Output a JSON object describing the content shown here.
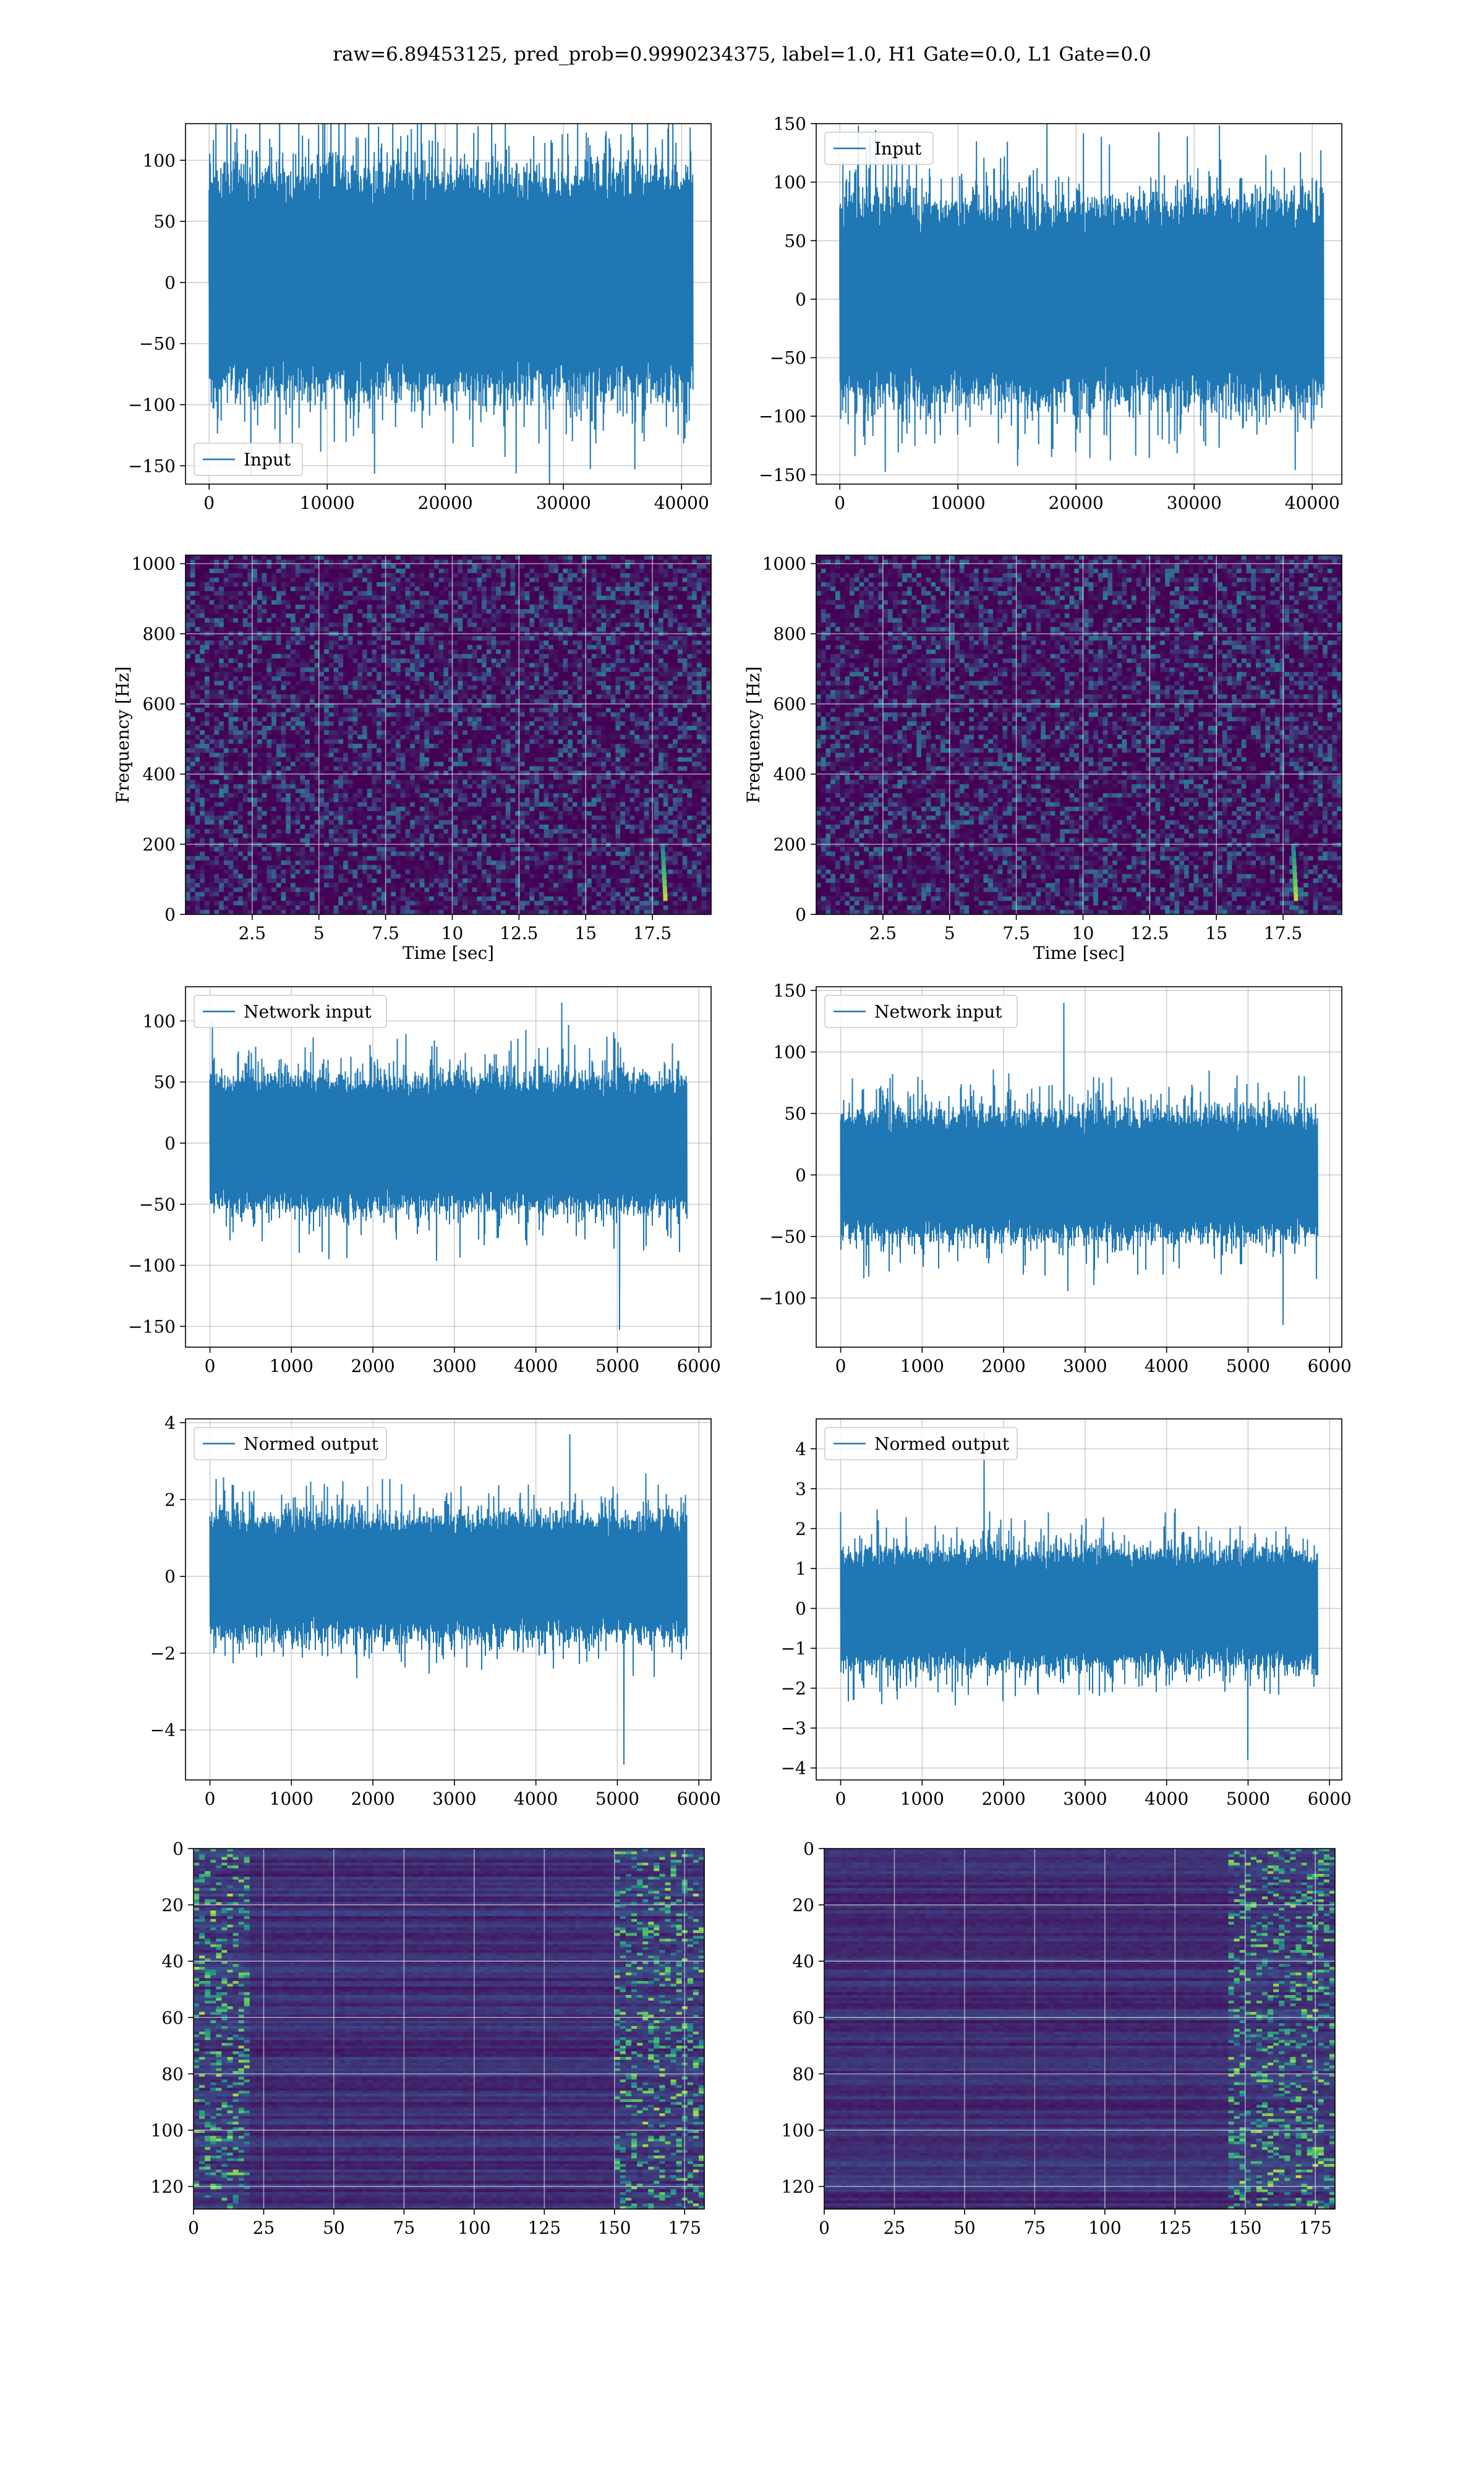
{
  "figure": {
    "suptitle": "raw=6.89453125, pred_prob=0.9990234375, label=1.0, H1 Gate=0.0, L1 Gate=0.0"
  },
  "colors": {
    "line": "#1f77b4",
    "grid": "#b0b0b0",
    "viridis_dark": "#440154",
    "viridis_mid": "#21918c",
    "viridis_bright": "#fde725"
  },
  "chart_data": [
    {
      "id": "h1-input",
      "type": "line",
      "title": "",
      "xlabel": "",
      "ylabel": "",
      "xlim": [
        -2000,
        42500
      ],
      "ylim": [
        -165,
        130
      ],
      "xticks": [
        0,
        10000,
        20000,
        30000,
        40000
      ],
      "yticks": [
        -150,
        -100,
        -50,
        0,
        50,
        100
      ],
      "legend": {
        "label": "Input",
        "loc": "lower-left"
      },
      "grid": true,
      "series": [
        {
          "name": "Input",
          "n": 40960,
          "x_range": [
            0,
            40960
          ],
          "envelope": [
            -75,
            75
          ],
          "peak_max": 120,
          "peak_min": -153
        }
      ]
    },
    {
      "id": "l1-input",
      "type": "line",
      "title": "",
      "xlabel": "",
      "ylabel": "",
      "xlim": [
        -2000,
        42500
      ],
      "ylim": [
        -158,
        150
      ],
      "xticks": [
        0,
        10000,
        20000,
        30000,
        40000
      ],
      "yticks": [
        -150,
        -100,
        -50,
        0,
        50,
        100,
        150
      ],
      "legend": {
        "label": "Input",
        "loc": "upper-left"
      },
      "grid": true,
      "series": [
        {
          "name": "Input",
          "n": 40960,
          "x_range": [
            0,
            40960
          ],
          "envelope": [
            -70,
            70
          ],
          "peak_max": 139,
          "peak_min": -146
        }
      ]
    },
    {
      "id": "h1-spectrogram",
      "type": "heatmap",
      "title": "",
      "xlabel": "Time [sec]",
      "ylabel": "Frequency [Hz]",
      "xlim": [
        0,
        19.7
      ],
      "ylim": [
        0,
        1024
      ],
      "xticks": [
        2.5,
        5.0,
        7.5,
        10.0,
        12.5,
        15.0,
        17.5
      ],
      "yticks": [
        0,
        200,
        400,
        600,
        800,
        1000
      ],
      "colormap": "viridis",
      "grid": true,
      "features": [
        {
          "t": 17.9,
          "f_low": 40,
          "f_high": 200,
          "strength": "high"
        }
      ]
    },
    {
      "id": "l1-spectrogram",
      "type": "heatmap",
      "title": "",
      "xlabel": "Time [sec]",
      "ylabel": "Frequency [Hz]",
      "xlim": [
        0,
        19.7
      ],
      "ylim": [
        0,
        1024
      ],
      "xticks": [
        2.5,
        5.0,
        7.5,
        10.0,
        12.5,
        15.0,
        17.5
      ],
      "yticks": [
        0,
        200,
        400,
        600,
        800,
        1000
      ],
      "colormap": "viridis",
      "grid": true,
      "features": [
        {
          "t": 17.9,
          "f_low": 40,
          "f_high": 200,
          "strength": "high"
        }
      ]
    },
    {
      "id": "h1-network-input",
      "type": "line",
      "title": "",
      "xlabel": "",
      "ylabel": "",
      "xlim": [
        -300,
        6150
      ],
      "ylim": [
        -167,
        128
      ],
      "xticks": [
        0,
        1000,
        2000,
        3000,
        4000,
        5000,
        6000
      ],
      "yticks": [
        -150,
        -100,
        -50,
        0,
        50,
        100
      ],
      "legend": {
        "label": "Network input",
        "loc": "upper-left"
      },
      "grid": true,
      "series": [
        {
          "name": "Network input",
          "n": 5850,
          "x_range": [
            0,
            5850
          ],
          "envelope": [
            -45,
            45
          ],
          "peak_max": 115,
          "peak_min": -153
        }
      ]
    },
    {
      "id": "l1-network-input",
      "type": "line",
      "title": "",
      "xlabel": "",
      "ylabel": "",
      "xlim": [
        -300,
        6150
      ],
      "ylim": [
        -140,
        153
      ],
      "xticks": [
        0,
        1000,
        2000,
        3000,
        4000,
        5000,
        6000
      ],
      "yticks": [
        -100,
        -50,
        0,
        50,
        100,
        150
      ],
      "legend": {
        "label": "Network input",
        "loc": "upper-left"
      },
      "grid": true,
      "series": [
        {
          "name": "Network input",
          "n": 5850,
          "x_range": [
            0,
            5850
          ],
          "envelope": [
            -42,
            42
          ],
          "peak_max": 140,
          "peak_min": -122
        }
      ]
    },
    {
      "id": "h1-normed-output",
      "type": "line",
      "title": "",
      "xlabel": "",
      "ylabel": "",
      "xlim": [
        -300,
        6150
      ],
      "ylim": [
        -5.3,
        4.1
      ],
      "xticks": [
        0,
        1000,
        2000,
        3000,
        4000,
        5000,
        6000
      ],
      "yticks": [
        -4,
        -2,
        0,
        2,
        4
      ],
      "legend": {
        "label": "Normed output",
        "loc": "upper-left"
      },
      "grid": true,
      "series": [
        {
          "name": "Normed output",
          "n": 5850,
          "x_range": [
            0,
            5850
          ],
          "envelope": [
            -1.3,
            1.3
          ],
          "peak_max": 3.7,
          "peak_min": -4.9
        }
      ]
    },
    {
      "id": "l1-normed-output",
      "type": "line",
      "title": "",
      "xlabel": "",
      "ylabel": "",
      "xlim": [
        -300,
        6150
      ],
      "ylim": [
        -4.3,
        4.75
      ],
      "xticks": [
        0,
        1000,
        2000,
        3000,
        4000,
        5000,
        6000
      ],
      "yticks": [
        -4,
        -3,
        -2,
        -1,
        0,
        1,
        2,
        3,
        4
      ],
      "legend": {
        "label": "Normed output",
        "loc": "upper-left"
      },
      "grid": true,
      "series": [
        {
          "name": "Normed output",
          "n": 5850,
          "x_range": [
            0,
            5850
          ],
          "envelope": [
            -1.2,
            1.2
          ],
          "peak_max": 4.4,
          "peak_min": -3.8
        }
      ]
    },
    {
      "id": "h1-feature-map",
      "type": "heatmap",
      "title": "",
      "xlabel": "",
      "ylabel": "",
      "xlim": [
        0,
        182
      ],
      "ylim": [
        128,
        0
      ],
      "xticks": [
        0,
        25,
        50,
        75,
        100,
        125,
        150,
        175
      ],
      "yticks": [
        0,
        20,
        40,
        60,
        80,
        100,
        120
      ],
      "colormap": "viridis",
      "grid": true,
      "bright_regions": [
        {
          "x": [
            0,
            20
          ],
          "y": [
            0,
            128
          ]
        },
        {
          "x": [
            150,
            182
          ],
          "y": [
            0,
            128
          ]
        }
      ]
    },
    {
      "id": "l1-feature-map",
      "type": "heatmap",
      "title": "",
      "xlabel": "",
      "ylabel": "",
      "xlim": [
        0,
        182
      ],
      "ylim": [
        128,
        0
      ],
      "xticks": [
        0,
        25,
        50,
        75,
        100,
        125,
        150,
        175
      ],
      "yticks": [
        0,
        20,
        40,
        60,
        80,
        100,
        120
      ],
      "colormap": "viridis",
      "grid": true,
      "bright_regions": [
        {
          "x": [
            145,
            182
          ],
          "y": [
            0,
            128
          ]
        }
      ]
    }
  ]
}
